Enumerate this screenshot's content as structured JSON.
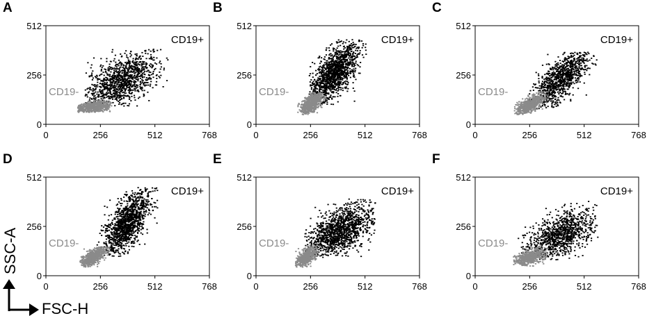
{
  "figure": {
    "x_axis_title": "FSC-H",
    "y_axis_title": "SSC-A"
  },
  "colors": {
    "positive": "#000000",
    "negative": "#8a8a8a",
    "frame": "#000000"
  },
  "chart_data": [
    {
      "type": "scatter",
      "panel": "A",
      "xlim": [
        0,
        768
      ],
      "ylim": [
        0,
        512
      ],
      "xticks": [
        0,
        256,
        512,
        768
      ],
      "yticks": [
        0,
        256,
        512
      ],
      "positive_label": "CD19+",
      "negative_label": "CD19-",
      "series": [
        {
          "name": "CD19+",
          "color": "#000000",
          "center": [
            360,
            230
          ],
          "spread": [
            85,
            60
          ],
          "tilt": 0.45,
          "count": 1100,
          "xrange": [
            185,
            580
          ],
          "yrange": [
            95,
            395
          ]
        },
        {
          "name": "CD19-",
          "color": "#8a8a8a",
          "center": [
            225,
            90
          ],
          "spread": [
            45,
            14
          ],
          "tilt": 0.1,
          "count": 650,
          "xrange": [
            150,
            310
          ],
          "yrange": [
            62,
            130
          ]
        }
      ]
    },
    {
      "type": "scatter",
      "panel": "B",
      "xlim": [
        0,
        768
      ],
      "ylim": [
        0,
        512
      ],
      "xticks": [
        0,
        256,
        512,
        768
      ],
      "yticks": [
        0,
        256,
        512
      ],
      "positive_label": "CD19+",
      "negative_label": "CD19-",
      "series": [
        {
          "name": "CD19+",
          "color": "#000000",
          "center": [
            365,
            265
          ],
          "spread": [
            55,
            62
          ],
          "tilt": 0.9,
          "count": 1300,
          "xrange": [
            250,
            525
          ],
          "yrange": [
            100,
            440
          ]
        },
        {
          "name": "CD19-",
          "color": "#8a8a8a",
          "center": [
            260,
            110
          ],
          "spread": [
            28,
            24
          ],
          "tilt": 0.7,
          "count": 650,
          "xrange": [
            195,
            335
          ],
          "yrange": [
            50,
            165
          ]
        }
      ]
    },
    {
      "type": "scatter",
      "panel": "C",
      "xlim": [
        0,
        768
      ],
      "ylim": [
        0,
        512
      ],
      "xticks": [
        0,
        256,
        512,
        768
      ],
      "yticks": [
        0,
        256,
        512
      ],
      "positive_label": "CD19+",
      "negative_label": "CD19-",
      "series": [
        {
          "name": "CD19+",
          "color": "#000000",
          "center": [
            400,
            235
          ],
          "spread": [
            70,
            55
          ],
          "tilt": 0.9,
          "count": 1000,
          "xrange": [
            240,
            575
          ],
          "yrange": [
            80,
            375
          ]
        },
        {
          "name": "CD19-",
          "color": "#8a8a8a",
          "center": [
            255,
            100
          ],
          "spread": [
            35,
            20
          ],
          "tilt": 0.6,
          "count": 650,
          "xrange": [
            185,
            345
          ],
          "yrange": [
            50,
            180
          ]
        }
      ]
    },
    {
      "type": "scatter",
      "panel": "D",
      "xlim": [
        0,
        768
      ],
      "ylim": [
        0,
        512
      ],
      "xticks": [
        0,
        256,
        512,
        768
      ],
      "yticks": [
        0,
        256,
        512
      ],
      "positive_label": "CD19+",
      "negative_label": "CD19-",
      "series": [
        {
          "name": "CD19+",
          "color": "#000000",
          "center": [
            380,
            270
          ],
          "spread": [
            55,
            65
          ],
          "tilt": 1.0,
          "count": 1250,
          "xrange": [
            240,
            525
          ],
          "yrange": [
            100,
            460
          ]
        },
        {
          "name": "CD19-",
          "color": "#8a8a8a",
          "center": [
            220,
            95
          ],
          "spread": [
            32,
            20
          ],
          "tilt": 0.6,
          "count": 650,
          "xrange": [
            160,
            300
          ],
          "yrange": [
            45,
            150
          ]
        }
      ]
    },
    {
      "type": "scatter",
      "panel": "E",
      "xlim": [
        0,
        768
      ],
      "ylim": [
        0,
        512
      ],
      "xticks": [
        0,
        256,
        512,
        768
      ],
      "yticks": [
        0,
        256,
        512
      ],
      "positive_label": "CD19+",
      "negative_label": "CD19-",
      "series": [
        {
          "name": "CD19+",
          "color": "#000000",
          "center": [
            390,
            230
          ],
          "spread": [
            80,
            60
          ],
          "tilt": 0.5,
          "count": 1300,
          "xrange": [
            230,
            560
          ],
          "yrange": [
            95,
            400
          ]
        },
        {
          "name": "CD19-",
          "color": "#8a8a8a",
          "center": [
            235,
            95
          ],
          "spread": [
            26,
            22
          ],
          "tilt": 0.6,
          "count": 500,
          "xrange": [
            185,
            300
          ],
          "yrange": [
            45,
            160
          ]
        }
      ]
    },
    {
      "type": "scatter",
      "panel": "F",
      "xlim": [
        0,
        768
      ],
      "ylim": [
        0,
        512
      ],
      "xticks": [
        0,
        256,
        512,
        768
      ],
      "yticks": [
        0,
        256,
        512
      ],
      "positive_label": "CD19+",
      "negative_label": "CD19-",
      "series": [
        {
          "name": "CD19+",
          "color": "#000000",
          "center": [
            405,
            215
          ],
          "spread": [
            85,
            55
          ],
          "tilt": 0.4,
          "count": 1000,
          "xrange": [
            190,
            580
          ],
          "yrange": [
            80,
            395
          ]
        },
        {
          "name": "CD19-",
          "color": "#8a8a8a",
          "center": [
            255,
            95
          ],
          "spread": [
            38,
            18
          ],
          "tilt": 0.3,
          "count": 600,
          "xrange": [
            180,
            340
          ],
          "yrange": [
            50,
            160
          ]
        }
      ]
    }
  ]
}
